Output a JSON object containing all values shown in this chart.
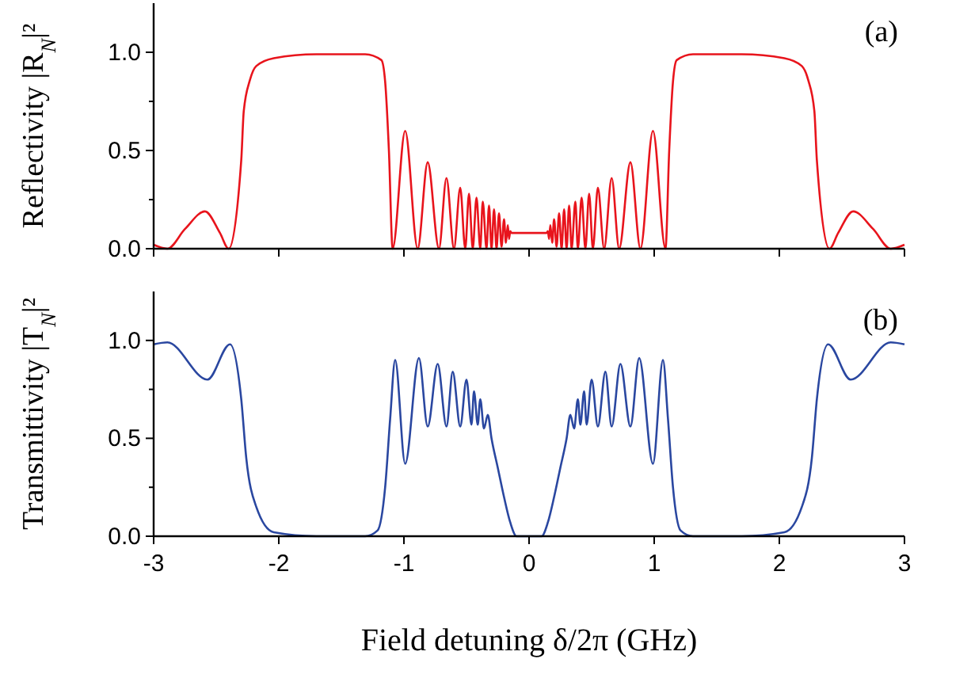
{
  "chart_data": [
    {
      "type": "line",
      "ylabel": "Reflectivity |R$_{N}$|²",
      "annotations": [
        "(a)"
      ],
      "xlim": [
        -3,
        3
      ],
      "xticks": [
        -3,
        -2,
        -1,
        0,
        1,
        2,
        3
      ],
      "ylim": [
        0,
        1.25
      ],
      "yticks": [
        {
          "value": 0,
          "label": "0.0"
        },
        {
          "value": 0.25,
          "label": null
        },
        {
          "value": 0.5,
          "label": "0.5"
        },
        {
          "value": 0.75,
          "label": null
        },
        {
          "value": 1,
          "label": "1.0"
        }
      ],
      "tick_labels": "y",
      "grid": false,
      "series": [
        {
          "color": "#e8141c",
          "x": [
            -3,
            -2.89,
            -2.75,
            -2.59,
            -2.47,
            -2.4,
            -2.3,
            -2.28,
            -2.23,
            -2.18,
            -2.04,
            -1.7,
            -1.31,
            -1.18,
            -1.15,
            -1.12,
            -1.09,
            -0.99,
            -0.89,
            -0.81,
            -0.72,
            -0.66,
            -0.6,
            -0.55,
            -0.51,
            -0.48,
            -0.45,
            -0.42,
            -0.39,
            -0.37,
            -0.34,
            -0.32,
            -0.3,
            -0.28,
            -0.26,
            -0.24,
            -0.22,
            -0.2,
            -0.185,
            -0.17,
            -0.16,
            -0.15,
            -0.14,
            0.14,
            0.15,
            0.16,
            0.17,
            0.185,
            0.2,
            0.22,
            0.24,
            0.26,
            0.28,
            0.3,
            0.32,
            0.34,
            0.37,
            0.39,
            0.42,
            0.45,
            0.48,
            0.51,
            0.55,
            0.6,
            0.66,
            0.72,
            0.81,
            0.89,
            0.99,
            1.09,
            1.12,
            1.15,
            1.18,
            1.31,
            1.7,
            2.04,
            2.18,
            2.23,
            2.28,
            2.3,
            2.4,
            2.47,
            2.59,
            2.75,
            2.89,
            3
          ],
          "values": [
            0.02,
            0,
            0.1,
            0.19,
            0.08,
            0,
            0.45,
            0.7,
            0.86,
            0.93,
            0.97,
            0.99,
            0.99,
            0.96,
            0.85,
            0.5,
            0,
            0.6,
            0,
            0.44,
            0,
            0.36,
            0,
            0.31,
            0,
            0.28,
            0,
            0.26,
            0,
            0.24,
            0,
            0.22,
            0,
            0.2,
            0,
            0.18,
            0.01,
            0.15,
            0.03,
            0.12,
            0.05,
            0.09,
            0.08,
            0.08,
            0.09,
            0.05,
            0.12,
            0.03,
            0.15,
            0.01,
            0.18,
            0,
            0.2,
            0,
            0.22,
            0,
            0.24,
            0,
            0.26,
            0,
            0.28,
            0,
            0.31,
            0,
            0.36,
            0,
            0.44,
            0,
            0.6,
            0,
            0.5,
            0.85,
            0.96,
            0.99,
            0.99,
            0.97,
            0.93,
            0.86,
            0.7,
            0.45,
            0,
            0.08,
            0.19,
            0.1,
            0,
            0.02
          ]
        }
      ]
    },
    {
      "type": "line",
      "xlabel": "Field detuning δ/2π (GHz)",
      "ylabel": "Transmittivity |T$_{N}$|²",
      "annotations": [
        "(b)"
      ],
      "xlim": [
        -3,
        3
      ],
      "xticks": [
        -3,
        -2,
        -1,
        0,
        1,
        2,
        3
      ],
      "ylim": [
        0,
        1.25
      ],
      "yticks": [
        {
          "value": 0,
          "label": "0.0"
        },
        {
          "value": 0.25,
          "label": null
        },
        {
          "value": 0.5,
          "label": "0.5"
        },
        {
          "value": 0.75,
          "label": null
        },
        {
          "value": 1,
          "label": "1.0"
        }
      ],
      "grid": false,
      "series": [
        {
          "color": "#2a47a0",
          "x": [
            -3,
            -2.89,
            -2.57,
            -2.39,
            -2.3,
            -2.26,
            -2.18,
            -2.04,
            -1.7,
            -1.31,
            -1.21,
            -1.15,
            -1.11,
            -1.07,
            -0.99,
            -0.88,
            -0.81,
            -0.73,
            -0.66,
            -0.61,
            -0.55,
            -0.5,
            -0.46,
            -0.44,
            -0.41,
            -0.39,
            -0.36,
            -0.33,
            -0.3,
            -0.25,
            -0.2,
            -0.15,
            -0.1,
            0.1,
            0.15,
            0.2,
            0.25,
            0.3,
            0.33,
            0.36,
            0.39,
            0.41,
            0.44,
            0.46,
            0.5,
            0.55,
            0.61,
            0.66,
            0.73,
            0.81,
            0.88,
            0.99,
            1.07,
            1.11,
            1.15,
            1.21,
            1.31,
            1.7,
            2.04,
            2.18,
            2.26,
            2.3,
            2.39,
            2.57,
            2.89,
            3
          ],
          "values": [
            0.98,
            0.99,
            0.8,
            0.98,
            0.7,
            0.4,
            0.15,
            0.02,
            0,
            0,
            0.03,
            0.25,
            0.6,
            0.9,
            0.37,
            0.91,
            0.56,
            0.88,
            0.56,
            0.84,
            0.56,
            0.8,
            0.57,
            0.74,
            0.57,
            0.7,
            0.55,
            0.62,
            0.5,
            0.35,
            0.2,
            0.07,
            0,
            0,
            0.07,
            0.2,
            0.35,
            0.5,
            0.62,
            0.55,
            0.7,
            0.57,
            0.74,
            0.57,
            0.8,
            0.56,
            0.84,
            0.56,
            0.88,
            0.56,
            0.91,
            0.37,
            0.9,
            0.6,
            0.25,
            0.03,
            0,
            0,
            0.02,
            0.15,
            0.4,
            0.7,
            0.98,
            0.8,
            0.99,
            0.98
          ]
        }
      ]
    }
  ]
}
